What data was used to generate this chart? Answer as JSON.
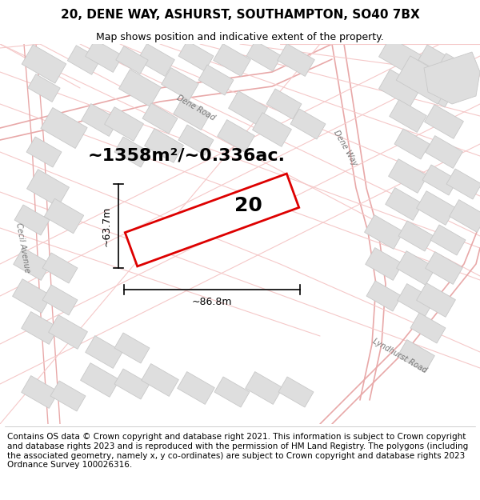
{
  "title": "20, DENE WAY, ASHURST, SOUTHAMPTON, SO40 7BX",
  "subtitle": "Map shows position and indicative extent of the property.",
  "area_text": "~1358m²/~0.336ac.",
  "plot_number": "20",
  "dim_width": "~86.8m",
  "dim_height": "~63.7m",
  "footer": "Contains OS data © Crown copyright and database right 2021. This information is subject to Crown copyright and database rights 2023 and is reproduced with the permission of HM Land Registry. The polygons (including the associated geometry, namely x, y co-ordinates) are subject to Crown copyright and database rights 2023 Ordnance Survey 100026316.",
  "map_bg": "#f7f5f5",
  "road_color_light": "#f5c8c8",
  "road_color_med": "#e8a8a8",
  "building_fill": "#dedede",
  "building_edge": "#c8c8c8",
  "plot_color": "#dd0000",
  "plot_fill": "#ffffff",
  "title_fontsize": 11,
  "subtitle_fontsize": 9,
  "area_fontsize": 16,
  "plot_num_fontsize": 18,
  "dim_fontsize": 9,
  "road_label_fontsize": 7,
  "footer_fontsize": 7.5
}
